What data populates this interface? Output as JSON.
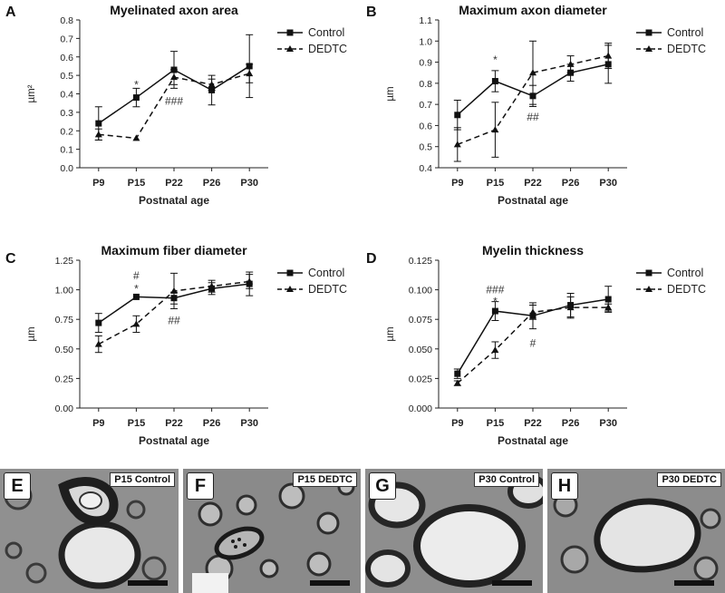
{
  "chart_data": [
    {
      "type": "line",
      "panel": "A",
      "title": "Myelinated axon area",
      "xlabel": "Postnatal age",
      "ylabel": "µm²",
      "categories": [
        "P9",
        "P15",
        "P22",
        "P26",
        "P30"
      ],
      "ylim": [
        0,
        0.8
      ],
      "yticks": [
        "0.0",
        "0.1",
        "0.2",
        "0.3",
        "0.4",
        "0.5",
        "0.6",
        "0.7",
        "0.8"
      ],
      "series": [
        {
          "name": "Control",
          "values": [
            0.24,
            0.38,
            0.53,
            0.42,
            0.55
          ],
          "errors": [
            0.09,
            0.05,
            0.1,
            0.08,
            0.17
          ]
        },
        {
          "name": "DEDTC",
          "values": [
            0.18,
            0.16,
            0.49,
            0.45,
            0.51
          ],
          "errors": [
            0.03,
            0.0,
            0.04,
            0.03,
            0.05
          ]
        }
      ],
      "annotations": [
        {
          "category": "P15",
          "y": 0.45,
          "text": "*"
        },
        {
          "category": "P22",
          "y": 0.36,
          "text": "###"
        }
      ],
      "legend": "top-right"
    },
    {
      "type": "line",
      "panel": "B",
      "title": "Maximum axon diameter",
      "xlabel": "Postnatal age",
      "ylabel": "µm",
      "categories": [
        "P9",
        "P15",
        "P22",
        "P26",
        "P30"
      ],
      "ylim": [
        0.4,
        1.1
      ],
      "yticks": [
        "0.4",
        "0.5",
        "0.6",
        "0.7",
        "0.8",
        "0.9",
        "1.0",
        "1.1"
      ],
      "series": [
        {
          "name": "Control",
          "values": [
            0.65,
            0.81,
            0.74,
            0.85,
            0.89
          ],
          "errors": [
            0.07,
            0.05,
            0.05,
            0.04,
            0.09
          ]
        },
        {
          "name": "DEDTC",
          "values": [
            0.51,
            0.58,
            0.85,
            0.89,
            0.93
          ],
          "errors": [
            0.08,
            0.13,
            0.15,
            0.04,
            0.06
          ]
        }
      ],
      "annotations": [
        {
          "category": "P15",
          "y": 0.91,
          "text": "*"
        },
        {
          "category": "P22",
          "y": 0.64,
          "text": "##"
        }
      ],
      "legend": "top-right"
    },
    {
      "type": "line",
      "panel": "C",
      "title": "Maximum fiber diameter",
      "xlabel": "Postnatal age",
      "ylabel": "µm",
      "categories": [
        "P9",
        "P15",
        "P22",
        "P26",
        "P30"
      ],
      "ylim": [
        0,
        1.25
      ],
      "yticks": [
        "0.00",
        "0.25",
        "0.50",
        "0.75",
        "1.00",
        "1.25"
      ],
      "series": [
        {
          "name": "Control",
          "values": [
            0.72,
            0.94,
            0.93,
            1.01,
            1.05
          ],
          "errors": [
            0.08,
            0.0,
            0.05,
            0.05,
            0.1
          ]
        },
        {
          "name": "DEDTC",
          "values": [
            0.54,
            0.71,
            0.99,
            1.03,
            1.07
          ],
          "errors": [
            0.07,
            0.07,
            0.15,
            0.05,
            0.06
          ]
        }
      ],
      "annotations": [
        {
          "category": "P15",
          "y": 1.12,
          "text": "#"
        },
        {
          "category": "P15",
          "y": 1.01,
          "text": "*"
        },
        {
          "category": "P22",
          "y": 0.74,
          "text": "##"
        }
      ],
      "legend": "top-right"
    },
    {
      "type": "line",
      "panel": "D",
      "title": "Myelin thickness",
      "xlabel": "Postnatal age",
      "ylabel": "µm",
      "categories": [
        "P9",
        "P15",
        "P22",
        "P26",
        "P30"
      ],
      "ylim": [
        0,
        0.125
      ],
      "yticks": [
        "0.000",
        "0.025",
        "0.050",
        "0.075",
        "0.100",
        "0.125"
      ],
      "series": [
        {
          "name": "Control",
          "values": [
            0.029,
            0.082,
            0.078,
            0.087,
            0.092
          ],
          "errors": [
            0.004,
            0.008,
            0.011,
            0.01,
            0.011
          ]
        },
        {
          "name": "DEDTC",
          "values": [
            0.021,
            0.049,
            0.081,
            0.085,
            0.085
          ],
          "errors": [
            0.002,
            0.007,
            0.006,
            0.009,
            0.003
          ]
        }
      ],
      "annotations": [
        {
          "category": "P15",
          "y": 0.1,
          "text": "###"
        },
        {
          "category": "P15",
          "y": 0.09,
          "text": "*"
        },
        {
          "category": "P22",
          "y": 0.055,
          "text": "#"
        }
      ],
      "legend": "top-right"
    }
  ],
  "micrographs": [
    {
      "letter": "E",
      "label": "P15 Control"
    },
    {
      "letter": "F",
      "label": "P15 DEDTC"
    },
    {
      "letter": "G",
      "label": "P30 Control"
    },
    {
      "letter": "H",
      "label": "P30 DEDTC"
    }
  ]
}
